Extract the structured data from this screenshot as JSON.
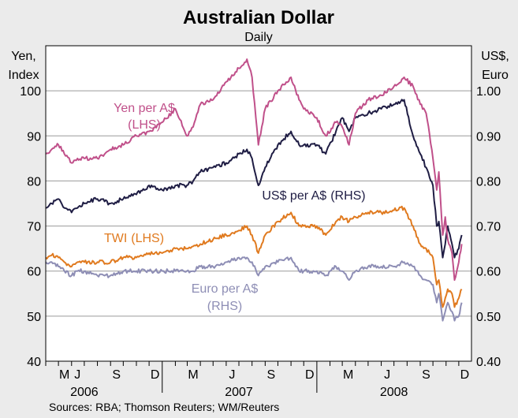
{
  "chart_data": {
    "type": "line",
    "title": "Australian Dollar",
    "subtitle": "Daily",
    "ylabel_left": [
      "Yen,",
      "Index"
    ],
    "ylabel_right": [
      "US$,",
      "Euro"
    ],
    "ylim_left": [
      40,
      110
    ],
    "ylim_right": [
      0.4,
      1.1
    ],
    "yticks_left": [
      "40",
      "50",
      "60",
      "70",
      "80",
      "90",
      "100"
    ],
    "yticks_right": [
      "0.40",
      "0.50",
      "0.60",
      "0.70",
      "0.80",
      "0.90",
      "1.00"
    ],
    "x_range": [
      "2006-04-01",
      "2008-12-31"
    ],
    "month_ticks": [
      "M",
      "J",
      "S",
      "D",
      "M",
      "J",
      "S",
      "D",
      "M",
      "J",
      "S",
      "D"
    ],
    "years": [
      "2006",
      "2007",
      "2008"
    ],
    "grid": "horizontal",
    "source": "Sources: RBA; Thomson Reuters; WM/Reuters",
    "series": [
      {
        "name": "Yen per A$",
        "tag": "(LHS)",
        "axis": "left",
        "color": "#c0508a",
        "x": [
          "2006-04-01",
          "2006-04-15",
          "2006-05-01",
          "2006-05-15",
          "2006-06-01",
          "2006-06-15",
          "2006-07-01",
          "2006-08-01",
          "2006-09-01",
          "2006-10-01",
          "2006-11-01",
          "2006-12-01",
          "2007-01-01",
          "2007-02-01",
          "2007-02-28",
          "2007-03-15",
          "2007-04-01",
          "2007-05-01",
          "2007-06-01",
          "2007-07-01",
          "2007-07-20",
          "2007-08-01",
          "2007-08-16",
          "2007-08-24",
          "2007-09-01",
          "2007-10-01",
          "2007-11-01",
          "2007-11-20",
          "2007-12-01",
          "2008-01-01",
          "2008-01-22",
          "2008-02-15",
          "2008-03-01",
          "2008-03-17",
          "2008-04-01",
          "2008-05-01",
          "2008-06-01",
          "2008-07-01",
          "2008-07-25",
          "2008-08-15",
          "2008-09-01",
          "2008-09-15",
          "2008-10-01",
          "2008-10-10",
          "2008-10-15",
          "2008-10-24",
          "2008-10-30",
          "2008-11-05",
          "2008-11-15",
          "2008-11-21",
          "2008-12-01",
          "2008-12-08"
        ],
        "values": [
          86,
          87,
          88,
          86,
          84,
          85,
          85,
          85,
          87,
          88,
          90,
          91,
          93,
          96,
          90,
          92,
          97,
          98,
          102,
          105,
          107,
          103,
          88,
          92,
          96,
          100,
          103,
          98,
          96,
          94,
          90,
          93,
          92,
          88,
          95,
          98,
          99,
          101,
          103,
          101,
          97,
          95,
          85,
          78,
          82,
          68,
          72,
          67,
          64,
          58,
          62,
          66
        ]
      },
      {
        "name": "US$ per A$",
        "tag": "(RHS)",
        "axis": "right",
        "color": "#1f1d44",
        "x": [
          "2006-04-01",
          "2006-04-15",
          "2006-05-01",
          "2006-05-15",
          "2006-06-01",
          "2006-06-15",
          "2006-07-01",
          "2006-08-01",
          "2006-09-01",
          "2006-10-01",
          "2006-11-01",
          "2006-12-01",
          "2007-01-01",
          "2007-02-01",
          "2007-02-28",
          "2007-03-15",
          "2007-04-01",
          "2007-05-01",
          "2007-06-01",
          "2007-07-01",
          "2007-07-20",
          "2007-08-01",
          "2007-08-16",
          "2007-08-24",
          "2007-09-01",
          "2007-10-01",
          "2007-11-01",
          "2007-11-20",
          "2007-12-01",
          "2008-01-01",
          "2008-01-22",
          "2008-02-15",
          "2008-03-01",
          "2008-03-17",
          "2008-04-01",
          "2008-05-01",
          "2008-06-01",
          "2008-07-01",
          "2008-07-25",
          "2008-08-15",
          "2008-09-01",
          "2008-09-15",
          "2008-10-01",
          "2008-10-10",
          "2008-10-15",
          "2008-10-24",
          "2008-10-30",
          "2008-11-05",
          "2008-11-15",
          "2008-11-21",
          "2008-12-01",
          "2008-12-08"
        ],
        "values": [
          0.74,
          0.75,
          0.76,
          0.74,
          0.73,
          0.74,
          0.75,
          0.76,
          0.75,
          0.76,
          0.77,
          0.79,
          0.78,
          0.79,
          0.79,
          0.8,
          0.82,
          0.83,
          0.84,
          0.86,
          0.87,
          0.85,
          0.79,
          0.81,
          0.83,
          0.88,
          0.91,
          0.88,
          0.88,
          0.88,
          0.86,
          0.91,
          0.94,
          0.91,
          0.94,
          0.95,
          0.96,
          0.97,
          0.98,
          0.9,
          0.86,
          0.83,
          0.79,
          0.7,
          0.71,
          0.63,
          0.66,
          0.7,
          0.66,
          0.63,
          0.65,
          0.68
        ]
      },
      {
        "name": "TWI",
        "tag": "(LHS)",
        "axis": "left",
        "color": "#e07a1f",
        "x": [
          "2006-04-01",
          "2006-04-15",
          "2006-05-01",
          "2006-05-15",
          "2006-06-01",
          "2006-06-15",
          "2006-07-01",
          "2006-08-01",
          "2006-09-01",
          "2006-10-01",
          "2006-11-01",
          "2006-12-01",
          "2007-01-01",
          "2007-02-01",
          "2007-02-28",
          "2007-03-15",
          "2007-04-01",
          "2007-05-01",
          "2007-06-01",
          "2007-07-01",
          "2007-07-20",
          "2007-08-01",
          "2007-08-16",
          "2007-08-24",
          "2007-09-01",
          "2007-10-01",
          "2007-11-01",
          "2007-11-20",
          "2007-12-01",
          "2008-01-01",
          "2008-01-22",
          "2008-02-15",
          "2008-03-01",
          "2008-03-17",
          "2008-04-01",
          "2008-05-01",
          "2008-06-01",
          "2008-07-01",
          "2008-07-25",
          "2008-08-15",
          "2008-09-01",
          "2008-09-15",
          "2008-10-01",
          "2008-10-10",
          "2008-10-15",
          "2008-10-24",
          "2008-10-30",
          "2008-11-05",
          "2008-11-15",
          "2008-11-21",
          "2008-12-01",
          "2008-12-08"
        ],
        "values": [
          63,
          63.5,
          63,
          62,
          61,
          62,
          62,
          62,
          62,
          63,
          63,
          64,
          64,
          65,
          65,
          65.5,
          66,
          67,
          68,
          69,
          70,
          68,
          64,
          66,
          68,
          71,
          73,
          70,
          70,
          70,
          68,
          71,
          72,
          71,
          72,
          73,
          73,
          73.5,
          74,
          70,
          66,
          65,
          63,
          57,
          58,
          52,
          54,
          56,
          55,
          52,
          54,
          56
        ]
      },
      {
        "name": "Euro per A$",
        "tag": "(RHS)",
        "axis": "right",
        "color": "#8e8eb5",
        "x": [
          "2006-04-01",
          "2006-04-15",
          "2006-05-01",
          "2006-05-15",
          "2006-06-01",
          "2006-06-15",
          "2006-07-01",
          "2006-08-01",
          "2006-09-01",
          "2006-10-01",
          "2006-11-01",
          "2006-12-01",
          "2007-01-01",
          "2007-02-01",
          "2007-02-28",
          "2007-03-15",
          "2007-04-01",
          "2007-05-01",
          "2007-06-01",
          "2007-07-01",
          "2007-07-20",
          "2007-08-01",
          "2007-08-16",
          "2007-08-24",
          "2007-09-01",
          "2007-10-01",
          "2007-11-01",
          "2007-11-20",
          "2007-12-01",
          "2008-01-01",
          "2008-01-22",
          "2008-02-15",
          "2008-03-01",
          "2008-03-17",
          "2008-04-01",
          "2008-05-01",
          "2008-06-01",
          "2008-07-01",
          "2008-07-25",
          "2008-08-15",
          "2008-09-01",
          "2008-09-15",
          "2008-10-01",
          "2008-10-10",
          "2008-10-15",
          "2008-10-24",
          "2008-10-30",
          "2008-11-05",
          "2008-11-15",
          "2008-11-21",
          "2008-12-01",
          "2008-12-08"
        ],
        "values": [
          0.62,
          0.62,
          0.61,
          0.6,
          0.59,
          0.6,
          0.6,
          0.59,
          0.59,
          0.6,
          0.6,
          0.6,
          0.6,
          0.6,
          0.6,
          0.6,
          0.61,
          0.61,
          0.62,
          0.63,
          0.63,
          0.62,
          0.59,
          0.6,
          0.61,
          0.62,
          0.63,
          0.6,
          0.6,
          0.6,
          0.59,
          0.61,
          0.6,
          0.58,
          0.6,
          0.61,
          0.61,
          0.61,
          0.62,
          0.61,
          0.59,
          0.58,
          0.57,
          0.53,
          0.55,
          0.49,
          0.51,
          0.53,
          0.51,
          0.49,
          0.5,
          0.53
        ]
      }
    ]
  }
}
